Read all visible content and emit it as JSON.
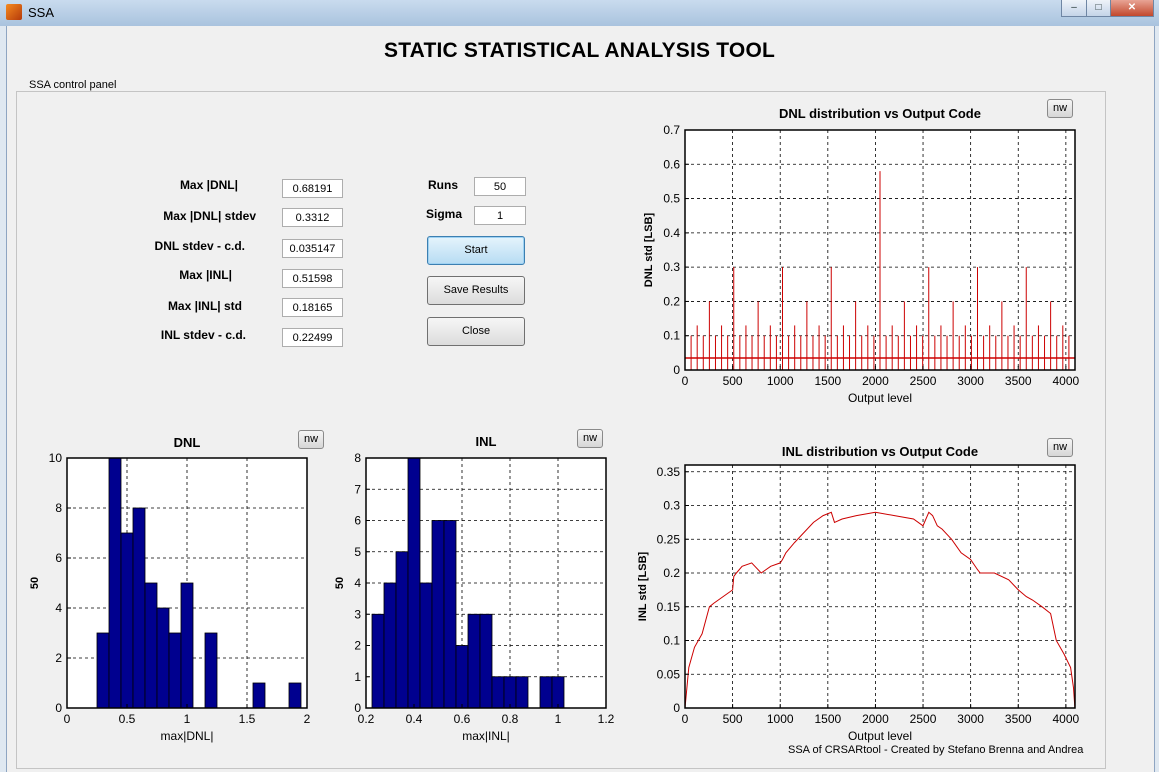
{
  "window": {
    "title": "SSA",
    "minimize": "–",
    "maximize": "□",
    "close": "✕"
  },
  "page_title": "STATIC STATISTICAL ANALYSIS TOOL",
  "panel_title": "SSA control panel",
  "params": [
    {
      "label": "Max |DNL|",
      "value": "0.68191"
    },
    {
      "label": "Max |DNL| stdev",
      "value": "0.3312"
    },
    {
      "label": "DNL stdev - c.d.",
      "value": "0.035147"
    },
    {
      "label": "Max |INL|",
      "value": "0.51598"
    },
    {
      "label": "Max |INL| std",
      "value": "0.18165"
    },
    {
      "label": "INL stdev - c.d.",
      "value": "0.22499"
    }
  ],
  "controls": {
    "runs_label": "Runs",
    "runs_value": "50",
    "sigma_label": "Sigma",
    "sigma_value": "1",
    "start_label": "Start",
    "save_label": "Save Results",
    "close_label": "Close"
  },
  "nw_label": "nw",
  "footer": "SSA of CRSARtool - Created by Stefano Brenna and Andrea",
  "colors": {
    "bar_fill": "#00008f",
    "line": "#cc0000"
  },
  "chart_data": [
    {
      "id": "dnl_line",
      "type": "line",
      "title": "DNL distribution vs Output Code",
      "xlabel": "Output level",
      "ylabel": "DNL std [LSB]",
      "xlim": [
        0,
        4096
      ],
      "ylim": [
        0,
        0.7
      ],
      "xticks": [
        0,
        500,
        1000,
        1500,
        2000,
        2500,
        3000,
        3500,
        4000
      ],
      "yticks": [
        0,
        0.1,
        0.2,
        0.3,
        0.4,
        0.5,
        0.6,
        0.7
      ],
      "baseline": 0.035,
      "spikes": [
        {
          "x": 64,
          "y": 0.1
        },
        {
          "x": 128,
          "y": 0.13
        },
        {
          "x": 192,
          "y": 0.1
        },
        {
          "x": 256,
          "y": 0.2
        },
        {
          "x": 320,
          "y": 0.1
        },
        {
          "x": 384,
          "y": 0.13
        },
        {
          "x": 448,
          "y": 0.1
        },
        {
          "x": 512,
          "y": 0.3
        },
        {
          "x": 576,
          "y": 0.1
        },
        {
          "x": 640,
          "y": 0.13
        },
        {
          "x": 704,
          "y": 0.1
        },
        {
          "x": 768,
          "y": 0.2
        },
        {
          "x": 832,
          "y": 0.1
        },
        {
          "x": 896,
          "y": 0.13
        },
        {
          "x": 960,
          "y": 0.1
        },
        {
          "x": 1024,
          "y": 0.3
        },
        {
          "x": 1088,
          "y": 0.1
        },
        {
          "x": 1152,
          "y": 0.13
        },
        {
          "x": 1216,
          "y": 0.1
        },
        {
          "x": 1280,
          "y": 0.2
        },
        {
          "x": 1344,
          "y": 0.1
        },
        {
          "x": 1408,
          "y": 0.13
        },
        {
          "x": 1472,
          "y": 0.1
        },
        {
          "x": 1536,
          "y": 0.3
        },
        {
          "x": 1600,
          "y": 0.1
        },
        {
          "x": 1664,
          "y": 0.13
        },
        {
          "x": 1728,
          "y": 0.1
        },
        {
          "x": 1792,
          "y": 0.2
        },
        {
          "x": 1856,
          "y": 0.1
        },
        {
          "x": 1920,
          "y": 0.13
        },
        {
          "x": 1984,
          "y": 0.1
        },
        {
          "x": 2048,
          "y": 0.58
        },
        {
          "x": 2112,
          "y": 0.1
        },
        {
          "x": 2176,
          "y": 0.13
        },
        {
          "x": 2240,
          "y": 0.1
        },
        {
          "x": 2304,
          "y": 0.2
        },
        {
          "x": 2368,
          "y": 0.1
        },
        {
          "x": 2432,
          "y": 0.13
        },
        {
          "x": 2496,
          "y": 0.1
        },
        {
          "x": 2560,
          "y": 0.3
        },
        {
          "x": 2624,
          "y": 0.1
        },
        {
          "x": 2688,
          "y": 0.13
        },
        {
          "x": 2752,
          "y": 0.1
        },
        {
          "x": 2816,
          "y": 0.2
        },
        {
          "x": 2880,
          "y": 0.1
        },
        {
          "x": 2944,
          "y": 0.13
        },
        {
          "x": 3008,
          "y": 0.1
        },
        {
          "x": 3072,
          "y": 0.3
        },
        {
          "x": 3136,
          "y": 0.1
        },
        {
          "x": 3200,
          "y": 0.13
        },
        {
          "x": 3264,
          "y": 0.1
        },
        {
          "x": 3328,
          "y": 0.2
        },
        {
          "x": 3392,
          "y": 0.1
        },
        {
          "x": 3456,
          "y": 0.13
        },
        {
          "x": 3520,
          "y": 0.1
        },
        {
          "x": 3584,
          "y": 0.3
        },
        {
          "x": 3648,
          "y": 0.1
        },
        {
          "x": 3712,
          "y": 0.13
        },
        {
          "x": 3776,
          "y": 0.1
        },
        {
          "x": 3840,
          "y": 0.2
        },
        {
          "x": 3904,
          "y": 0.1
        },
        {
          "x": 3968,
          "y": 0.13
        },
        {
          "x": 4032,
          "y": 0.1
        }
      ]
    },
    {
      "id": "inl_line",
      "type": "line",
      "title": "INL distribution vs Output Code",
      "xlabel": "Output level",
      "ylabel": "INL std [LSB]",
      "xlim": [
        0,
        4096
      ],
      "ylim": [
        0,
        0.36
      ],
      "xticks": [
        0,
        500,
        1000,
        1500,
        2000,
        2500,
        3000,
        3500,
        4000
      ],
      "yticks": [
        0,
        0.05,
        0.1,
        0.15,
        0.2,
        0.25,
        0.3,
        0.35
      ],
      "x": [
        0,
        40,
        100,
        180,
        256,
        300,
        400,
        500,
        512,
        540,
        600,
        700,
        800,
        900,
        1000,
        1024,
        1060,
        1150,
        1250,
        1350,
        1450,
        1536,
        1570,
        1650,
        1800,
        2000,
        2200,
        2400,
        2500,
        2560,
        2600,
        2650,
        2700,
        2800,
        2900,
        3000,
        3072,
        3100,
        3250,
        3400,
        3500,
        3584,
        3650,
        3750,
        3840,
        3900,
        3980,
        4050,
        4080,
        4095
      ],
      "y": [
        0,
        0.06,
        0.09,
        0.11,
        0.15,
        0.155,
        0.165,
        0.175,
        0.195,
        0.2,
        0.21,
        0.215,
        0.2,
        0.21,
        0.215,
        0.22,
        0.23,
        0.245,
        0.26,
        0.275,
        0.285,
        0.29,
        0.275,
        0.28,
        0.285,
        0.29,
        0.285,
        0.28,
        0.27,
        0.29,
        0.285,
        0.27,
        0.265,
        0.25,
        0.23,
        0.22,
        0.205,
        0.2,
        0.2,
        0.19,
        0.175,
        0.165,
        0.16,
        0.15,
        0.14,
        0.1,
        0.08,
        0.06,
        0.03,
        0
      ]
    },
    {
      "id": "dnl_hist",
      "type": "bar",
      "title": "DNL",
      "xlabel": "max|DNL|",
      "ylabel": "50",
      "xlim": [
        0,
        2
      ],
      "ylim": [
        0,
        10
      ],
      "xticks": [
        0,
        0.5,
        1,
        1.5,
        2
      ],
      "yticks": [
        0,
        2,
        4,
        6,
        8,
        10
      ],
      "bin_width": 0.1,
      "bins": [
        0.3,
        0.4,
        0.5,
        0.6,
        0.7,
        0.8,
        0.9,
        1.0,
        1.1,
        1.2,
        1.3,
        1.4,
        1.5,
        1.6,
        1.7,
        1.8,
        1.9
      ],
      "counts": [
        3,
        10,
        7,
        8,
        5,
        4,
        3,
        5,
        0,
        3,
        0,
        0,
        0,
        1,
        0,
        0,
        1
      ]
    },
    {
      "id": "inl_hist",
      "type": "bar",
      "title": "INL",
      "xlabel": "max|INL|",
      "ylabel": "50",
      "xlim": [
        0.2,
        1.2
      ],
      "ylim": [
        0,
        8
      ],
      "xticks": [
        0.2,
        0.4,
        0.6,
        0.8,
        1,
        1.2
      ],
      "yticks": [
        0,
        1,
        2,
        3,
        4,
        5,
        6,
        7,
        8
      ],
      "bin_width": 0.05,
      "bins": [
        0.25,
        0.3,
        0.35,
        0.4,
        0.45,
        0.5,
        0.55,
        0.6,
        0.65,
        0.7,
        0.75,
        0.8,
        0.85,
        0.9,
        0.95,
        1.0
      ],
      "counts": [
        3,
        4,
        5,
        8,
        4,
        6,
        6,
        2,
        3,
        3,
        1,
        1,
        1,
        0,
        1,
        1
      ]
    }
  ]
}
